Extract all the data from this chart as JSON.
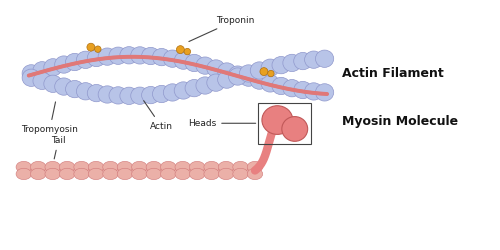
{
  "bg_color": "#ffffff",
  "actin_label": "Actin Filament",
  "myosin_label": "Myosin Molecule",
  "tropomyosin_label": "Tropomyosin",
  "actin_subunit_label": "Actin",
  "troponin_label": "Troponin",
  "tail_label": "Tail",
  "heads_label": "Heads",
  "strand_color": "#e07878",
  "actin_ball_color": "#b8c4e8",
  "actin_ball_edge": "#9098cc",
  "troponin_color": "#e8a020",
  "myosin_head_color": "#e88080",
  "myosin_head_edge": "#c05858",
  "myosin_tail_color": "#ebb0a8",
  "myosin_tail_edge": "#d07878",
  "label_fontsize": 6.5,
  "title_fontsize": 9
}
